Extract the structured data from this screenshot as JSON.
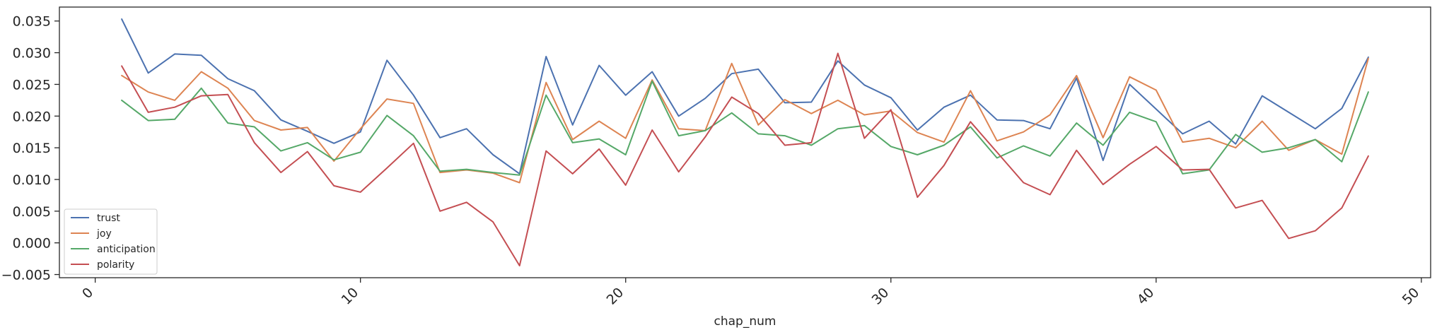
{
  "chart_data": {
    "type": "line",
    "xlabel": "chap_num",
    "ylabel": "",
    "xlim": [
      -1.35,
      50.35
    ],
    "ylim": [
      -0.0055,
      0.0372
    ],
    "x_ticks": [
      0,
      10,
      20,
      30,
      40,
      50
    ],
    "x_tick_labels": [
      "0",
      "10",
      "20",
      "30",
      "40",
      "50"
    ],
    "y_ticks": [
      -0.005,
      0.0,
      0.005,
      0.01,
      0.015,
      0.02,
      0.025,
      0.03,
      0.035
    ],
    "y_tick_labels": [
      "−0.005",
      "0.000",
      "0.005",
      "0.010",
      "0.015",
      "0.020",
      "0.025",
      "0.030",
      "0.035"
    ],
    "grid": false,
    "legend_position": "lower-left",
    "x": [
      1,
      2,
      3,
      4,
      5,
      6,
      7,
      8,
      9,
      10,
      11,
      12,
      13,
      14,
      15,
      16,
      17,
      18,
      19,
      20,
      21,
      22,
      23,
      24,
      25,
      26,
      27,
      28,
      29,
      30,
      31,
      32,
      33,
      34,
      35,
      36,
      37,
      38,
      39,
      40,
      41,
      42,
      43,
      44,
      45,
      46,
      47,
      48
    ],
    "series": [
      {
        "name": "trust",
        "color": "#4c72b0",
        "values": [
          0.0353,
          0.0268,
          0.0298,
          0.0296,
          0.0259,
          0.024,
          0.0194,
          0.0176,
          0.0157,
          0.0175,
          0.0288,
          0.0233,
          0.0166,
          0.018,
          0.0139,
          0.0109,
          0.0294,
          0.0186,
          0.028,
          0.0233,
          0.027,
          0.02,
          0.0228,
          0.0267,
          0.0274,
          0.0221,
          0.0222,
          0.0287,
          0.0249,
          0.0229,
          0.0178,
          0.0214,
          0.0233,
          0.0194,
          0.0193,
          0.018,
          0.026,
          0.013,
          0.025,
          0.0211,
          0.0172,
          0.0192,
          0.0156,
          0.0232,
          0.0206,
          0.018,
          0.0212,
          0.0293
        ]
      },
      {
        "name": "joy",
        "color": "#dd8452",
        "values": [
          0.0264,
          0.0238,
          0.0225,
          0.027,
          0.0244,
          0.0193,
          0.0178,
          0.0182,
          0.0129,
          0.018,
          0.0227,
          0.022,
          0.0111,
          0.0115,
          0.011,
          0.0095,
          0.0253,
          0.0163,
          0.0192,
          0.0165,
          0.0257,
          0.018,
          0.0177,
          0.0283,
          0.0186,
          0.0226,
          0.0204,
          0.0225,
          0.0202,
          0.0208,
          0.0174,
          0.0159,
          0.024,
          0.0161,
          0.0175,
          0.0202,
          0.0264,
          0.0166,
          0.0262,
          0.0241,
          0.0159,
          0.0165,
          0.015,
          0.0192,
          0.0146,
          0.0163,
          0.014,
          0.0291
        ]
      },
      {
        "name": "anticipation",
        "color": "#55a868",
        "values": [
          0.0225,
          0.0193,
          0.0195,
          0.0244,
          0.0189,
          0.0183,
          0.0145,
          0.0158,
          0.0131,
          0.0143,
          0.0201,
          0.0169,
          0.0113,
          0.0116,
          0.0111,
          0.0107,
          0.0233,
          0.0158,
          0.0164,
          0.0139,
          0.0255,
          0.0169,
          0.0177,
          0.0205,
          0.0172,
          0.0169,
          0.0154,
          0.018,
          0.0185,
          0.0152,
          0.0139,
          0.0154,
          0.0183,
          0.0134,
          0.0153,
          0.0137,
          0.0189,
          0.0154,
          0.0206,
          0.0191,
          0.0109,
          0.0115,
          0.0171,
          0.0143,
          0.015,
          0.0163,
          0.0128,
          0.0238
        ]
      },
      {
        "name": "polarity",
        "color": "#c44e52",
        "values": [
          0.0279,
          0.0206,
          0.0214,
          0.0232,
          0.0234,
          0.0158,
          0.0111,
          0.0144,
          0.009,
          0.008,
          0.0118,
          0.0157,
          0.005,
          0.0064,
          0.0033,
          -0.0036,
          0.0145,
          0.0109,
          0.0148,
          0.0091,
          0.0178,
          0.0112,
          0.0167,
          0.023,
          0.0204,
          0.0154,
          0.0158,
          0.0299,
          0.0165,
          0.021,
          0.0072,
          0.0122,
          0.0191,
          0.0143,
          0.0095,
          0.0076,
          0.0146,
          0.0092,
          0.0124,
          0.0152,
          0.0115,
          0.0116,
          0.0055,
          0.0067,
          0.0007,
          0.0019,
          0.0055,
          0.0137
        ]
      }
    ]
  }
}
